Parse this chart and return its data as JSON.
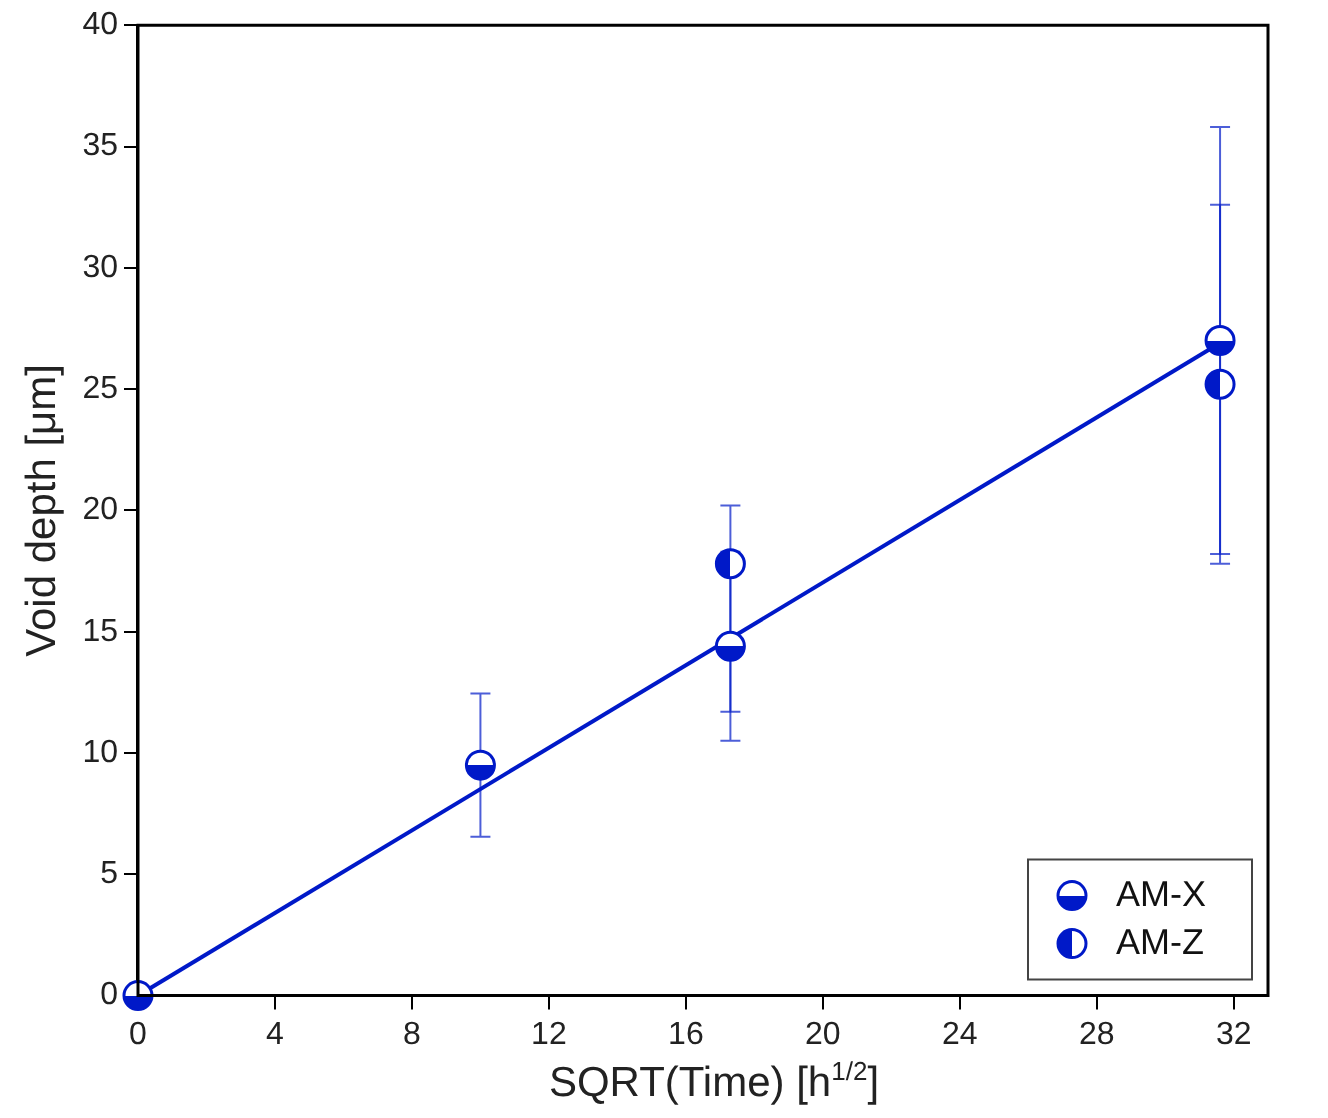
{
  "chart_data": {
    "type": "scatter",
    "xlabel": "SQRT(Time) [h$^{1/2}$]",
    "ylabel": "Void depth [μm]",
    "x": [
      0,
      10,
      17.3,
      31.6
    ],
    "series": [
      {
        "name": "AM-X",
        "color": "#0019c8",
        "values": [
          0,
          9.5,
          14.4,
          27.0
        ],
        "errors": [
          null,
          2.95,
          3.9,
          8.8
        ]
      },
      {
        "name": "AM-Z",
        "color": "#0019c8",
        "values": [
          null,
          null,
          17.8,
          25.2
        ],
        "errors": [
          null,
          null,
          [
            11.7,
            20.2
          ],
          7.4
        ]
      },
      {
        "type": "line",
        "color": "#0019c8",
        "marker": "none",
        "x": [
          0,
          31.6
        ],
        "values": [
          0,
          26.9
        ]
      }
    ],
    "xlim": [
      0,
      33
    ],
    "xticks": [
      0,
      4,
      8,
      12,
      16,
      20,
      24,
      28,
      32
    ],
    "ylim": [
      0,
      40
    ],
    "yticks": [
      0,
      5,
      10,
      15,
      20,
      25,
      30,
      35,
      40
    ],
    "grid": false,
    "legend": "bottom right",
    "marker": "circle"
  }
}
